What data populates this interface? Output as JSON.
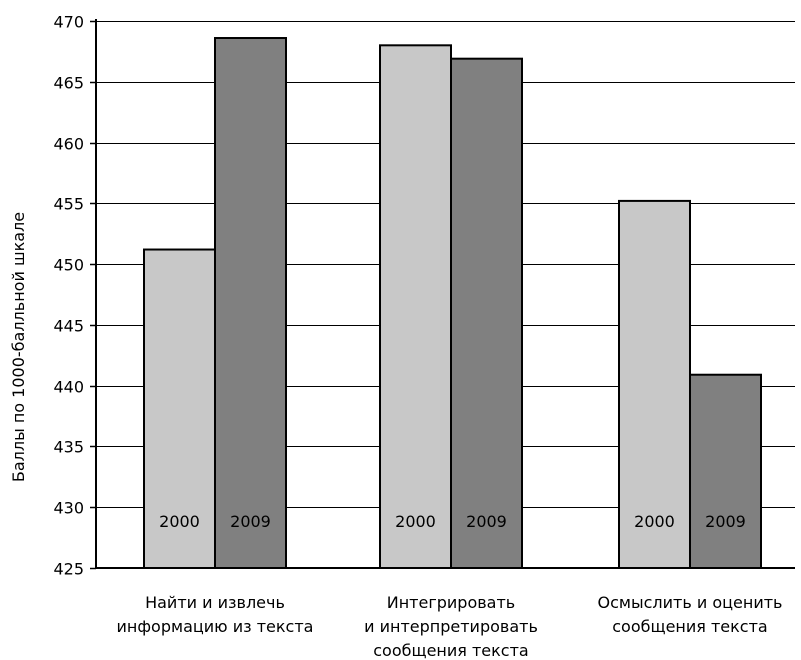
{
  "chart_data": {
    "type": "bar",
    "title": "",
    "xlabel": "",
    "ylabel": "Баллы по 1000-балльной шкале",
    "ylim": [
      425,
      470
    ],
    "yticks": [
      425,
      430,
      435,
      440,
      445,
      450,
      455,
      460,
      465,
      470
    ],
    "grid": true,
    "legend": "none",
    "categories": [
      [
        "Найти и извлечь",
        "информацию из текста"
      ],
      [
        "Интегрировать",
        "и интерпретировать",
        "сообщения текста"
      ],
      [
        "Осмыслить и оценить",
        "сообщения текста"
      ]
    ],
    "series": [
      {
        "label": "2000",
        "color": "#c8c8c8",
        "values": [
          451.2,
          468.0,
          455.2
        ]
      },
      {
        "label": "2009",
        "color": "#808080",
        "values": [
          468.6,
          466.9,
          440.9
        ]
      }
    ]
  }
}
